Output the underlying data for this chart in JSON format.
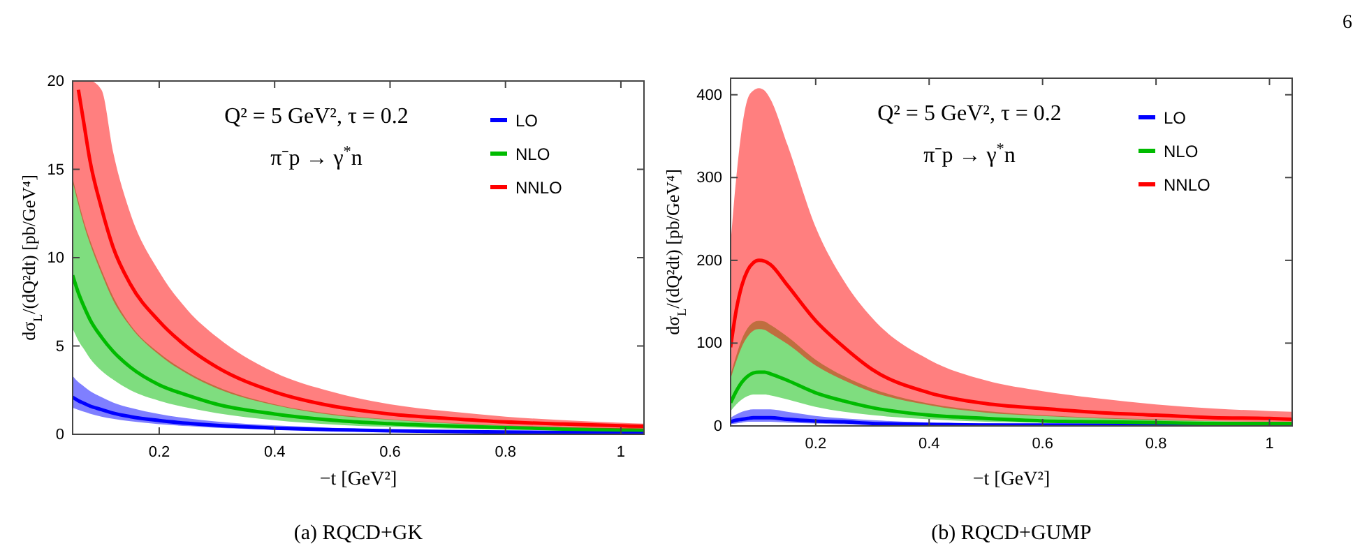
{
  "chart_data": [
    {
      "type": "line",
      "xlabel": "−t [GeV²]",
      "ylabel": "dσ$_{L}$/(dQ²dt) [pb/GeV⁴]",
      "annotations": [
        "Q² = 5 GeV²,   τ = 0.2",
        "π⁻p → γ$^{*}$n",
        "(a) RQCD+GK"
      ],
      "x": [
        0.05,
        0.06,
        0.07,
        0.08,
        0.1,
        0.12,
        0.15,
        0.2,
        0.25,
        0.3,
        0.4,
        0.5,
        0.6,
        0.7,
        0.8,
        0.9,
        1.0,
        1.04
      ],
      "xlim": [
        0.05,
        1.04
      ],
      "xticks": [
        0.2,
        0.4,
        0.6,
        0.8,
        1.0
      ],
      "ylim": [
        0,
        20
      ],
      "yticks": [
        0,
        5,
        10,
        15,
        20
      ],
      "grid": false,
      "legend": "top right",
      "line_style": "solid",
      "marker": "none",
      "series": [
        {
          "name": "LO",
          "color": "#0000ff",
          "values": [
            2.1,
            1.9,
            1.75,
            1.6,
            1.4,
            1.2,
            1.0,
            0.78,
            0.62,
            0.5,
            0.35,
            0.26,
            0.2,
            0.16,
            0.13,
            0.11,
            0.09,
            0.09
          ],
          "lower": [
            1.5,
            1.38,
            1.27,
            1.17,
            1.0,
            0.88,
            0.74,
            0.57,
            0.46,
            0.37,
            0.26,
            0.19,
            0.15,
            0.12,
            0.1,
            0.08,
            0.07,
            0.06
          ],
          "upper": [
            3.3,
            2.95,
            2.7,
            2.45,
            2.1,
            1.8,
            1.5,
            1.15,
            0.9,
            0.72,
            0.5,
            0.37,
            0.28,
            0.22,
            0.18,
            0.15,
            0.13,
            0.12
          ]
        },
        {
          "name": "NLO",
          "color": "#00bb00",
          "values": [
            9,
            8,
            7.2,
            6.5,
            5.5,
            4.7,
            3.8,
            2.8,
            2.2,
            1.7,
            1.15,
            0.8,
            0.6,
            0.47,
            0.38,
            0.3,
            0.25,
            0.24
          ],
          "lower": [
            6,
            5.3,
            4.8,
            4.3,
            3.6,
            3.1,
            2.5,
            1.9,
            1.5,
            1.2,
            0.8,
            0.55,
            0.42,
            0.33,
            0.27,
            0.22,
            0.18,
            0.17
          ],
          "upper": [
            14.5,
            13.2,
            12,
            11,
            9.3,
            7.8,
            6.2,
            4.6,
            3.5,
            2.7,
            1.7,
            1.15,
            0.85,
            0.65,
            0.5,
            0.4,
            0.33,
            0.3
          ]
        },
        {
          "name": "NNLO",
          "color": "#ff0000",
          "values": [
            null,
            19.5,
            17.5,
            15.5,
            12.8,
            10.6,
            8.5,
            6.4,
            4.9,
            3.8,
            2.4,
            1.6,
            1.15,
            0.9,
            0.7,
            0.58,
            0.48,
            0.45
          ],
          "lower": [
            14.3,
            13,
            11.8,
            10.8,
            9.1,
            7.6,
            6.1,
            4.5,
            3.4,
            2.6,
            1.65,
            1.1,
            0.82,
            0.62,
            0.48,
            0.39,
            0.32,
            0.29
          ],
          "upper": [
            20,
            20,
            20,
            20,
            19.5,
            16,
            12.5,
            9.2,
            7,
            5.5,
            3.5,
            2.4,
            1.7,
            1.3,
            1.0,
            0.8,
            0.65,
            0.6
          ]
        }
      ]
    },
    {
      "type": "line",
      "xlabel": "−t [GeV²]",
      "ylabel": "dσ$_{L}$/(dQ²dt) [pb/GeV⁴]",
      "annotations": [
        "Q² = 5 GeV²,   τ = 0.2",
        "π⁻p → γ$^{*}$n",
        "(b) RQCD+GUMP",
        "6"
      ],
      "x": [
        0.05,
        0.06,
        0.07,
        0.08,
        0.09,
        0.1,
        0.11,
        0.12,
        0.15,
        0.2,
        0.25,
        0.3,
        0.4,
        0.5,
        0.6,
        0.7,
        0.8,
        0.9,
        1.0,
        1.04
      ],
      "xlim": [
        0.05,
        1.04
      ],
      "xticks": [
        0.2,
        0.4,
        0.6,
        0.8,
        1.0
      ],
      "ylim": [
        0,
        420
      ],
      "yticks": [
        0,
        100,
        200,
        300,
        400
      ],
      "grid": false,
      "legend": "top right",
      "line_style": "solid",
      "marker": "none",
      "series": [
        {
          "name": "LO",
          "color": "#0000ff",
          "values": [
            5,
            7,
            8,
            9,
            10,
            10,
            10,
            10,
            8,
            6,
            5,
            3,
            2,
            1,
            1,
            1,
            1,
            0,
            null,
            null
          ],
          "lower": [
            2,
            3,
            4,
            5,
            5,
            5,
            5,
            5,
            4,
            3,
            2,
            2,
            1,
            1,
            0,
            0,
            0,
            0,
            0,
            0
          ],
          "upper": [
            10,
            14,
            17,
            19,
            20,
            20,
            20,
            20,
            17,
            12,
            9,
            7,
            4,
            3,
            2,
            2,
            1,
            1,
            1,
            1
          ]
        },
        {
          "name": "NLO",
          "color": "#00bb00",
          "values": [
            28,
            42,
            53,
            60,
            64,
            65,
            65,
            63,
            55,
            40,
            30,
            22,
            13,
            9,
            6,
            5,
            4,
            3,
            3,
            3
          ],
          "lower": [
            18,
            26,
            32,
            36,
            38,
            38,
            38,
            37,
            32,
            23,
            17,
            13,
            8,
            5,
            4,
            3,
            2,
            2,
            2,
            2
          ],
          "upper": [
            62,
            85,
            105,
            118,
            125,
            127,
            126,
            122,
            108,
            80,
            60,
            45,
            27,
            18,
            13,
            10,
            8,
            6,
            5,
            5
          ]
        },
        {
          "name": "NNLO",
          "color": "#ff0000",
          "values": [
            95,
            140,
            170,
            188,
            197,
            200,
            199,
            195,
            170,
            127,
            95,
            68,
            40,
            27,
            21,
            16,
            13,
            10,
            9,
            8
          ],
          "lower": [
            57,
            78,
            96,
            108,
            115,
            117,
            116,
            112,
            99,
            73,
            55,
            41,
            25,
            16,
            12,
            9,
            7,
            6,
            5,
            5
          ],
          "upper": [
            220,
            300,
            360,
            395,
            405,
            408,
            405,
            395,
            340,
            240,
            175,
            130,
            80,
            55,
            42,
            33,
            26,
            21,
            18,
            17
          ]
        }
      ]
    }
  ]
}
